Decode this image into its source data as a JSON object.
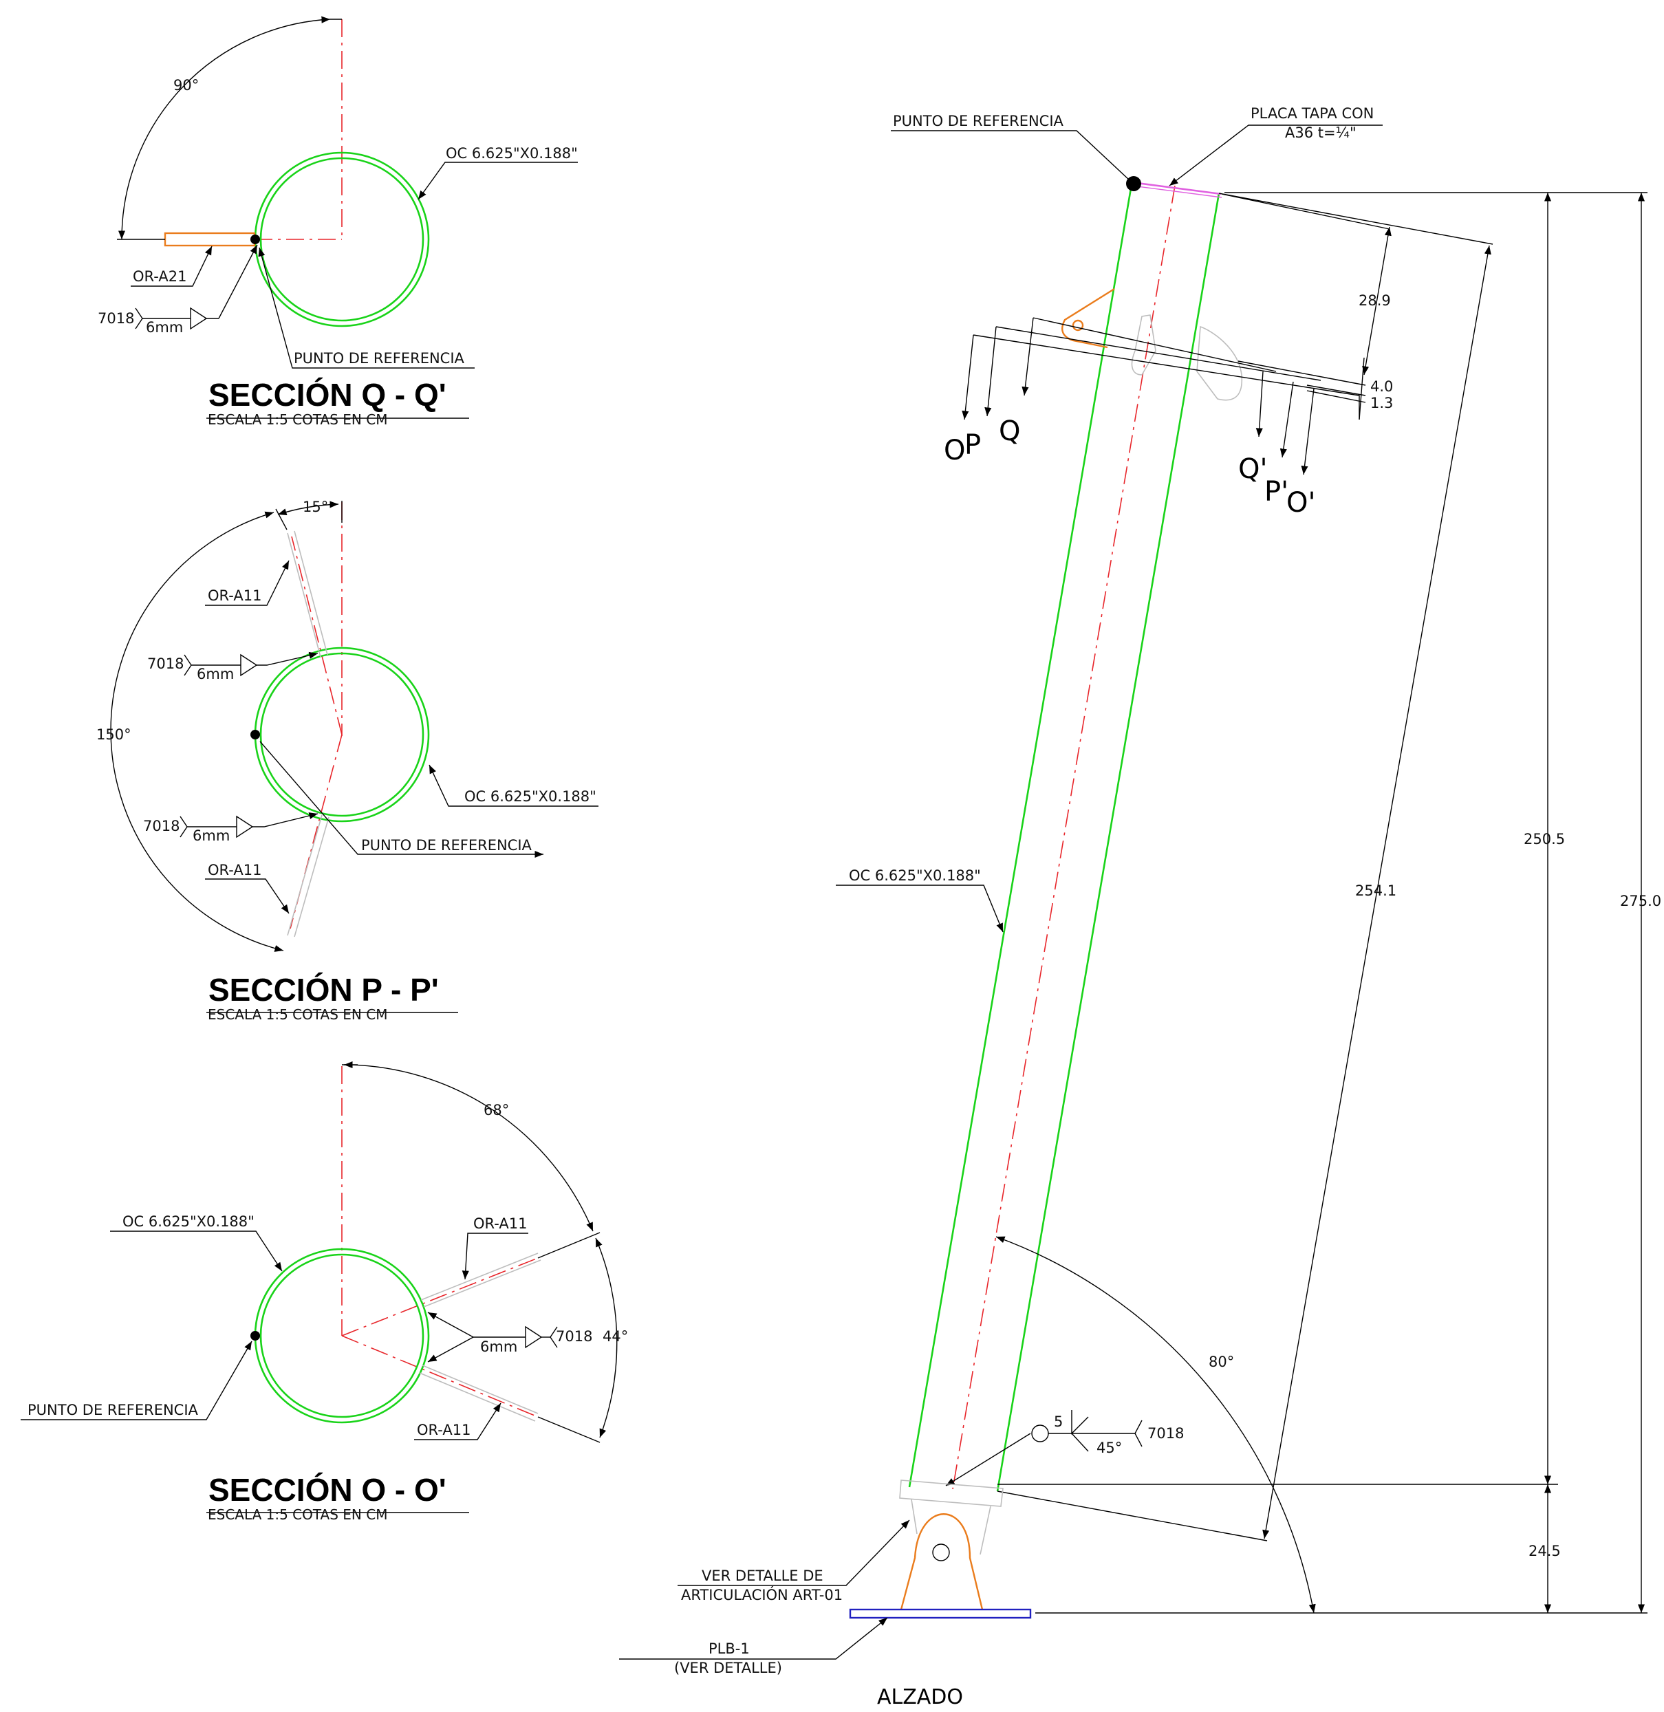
{
  "sections": [
    {
      "id": "q",
      "title": "SECCIÓN      Q - Q'",
      "scale_note": "ESCALA  1:5    COTAS EN CM",
      "angle": "90°",
      "pipe": "OC 6.625\"X0.188\"",
      "ref": "PUNTO DE REFERENCIA",
      "plate": "OR-A21",
      "weld_code": "7018",
      "weld_size": "6mm"
    },
    {
      "id": "p",
      "title": "SECCIÓN      P - P'",
      "scale_note": "ESCALA  1:5    COTAS EN CM",
      "angle_top": "15°",
      "angle_total": "150°",
      "pipe": "OC 6.625\"X0.188\"",
      "ref": "PUNTO DE REFERENCIA",
      "plate_top": "OR-A11",
      "plate_bottom": "OR-A11",
      "weld_code": "7018",
      "weld_size": "6mm"
    },
    {
      "id": "o",
      "title": "SECCIÓN      O - O'",
      "scale_note": "ESCALA  1:5    COTAS EN CM",
      "angle_top": "68°",
      "angle_mid": "44°",
      "pipe": "OC 6.625\"X0.188\"",
      "ref": "PUNTO DE REFERENCIA",
      "plate_top": "OR-A11",
      "plate_bottom": "OR-A11",
      "weld_code": "7018",
      "weld_size": "6mm"
    }
  ],
  "elevation": {
    "view_title": "ALZADO",
    "ref_point": "PUNTO DE REFERENCIA",
    "cap_plate_line1": "PLACA TAPA CON",
    "cap_plate_line2": "A36 t=¼\"",
    "pipe": "OC 6.625\"X0.188\"",
    "cut_labels": [
      "O",
      "P",
      "Q",
      "Q'",
      "P'",
      "O'"
    ],
    "dimensions": {
      "d1": "28.9",
      "d2": "4.0",
      "d3": "1.3",
      "length_inclined": "254.1",
      "height_pipe": "250.5",
      "height_total": "275.0",
      "height_base": "24.5",
      "angle": "80°"
    },
    "weld": {
      "size": "5",
      "angle": "45°",
      "code": "7018"
    },
    "detail_line1": "VER DETALLE DE",
    "detail_line2": "ARTICULACIÓN ART-01",
    "base_plate_line1": "PLB-1",
    "base_plate_line2": "(VER DETALLE)"
  },
  "colors": {
    "pipe": "#19d319",
    "axis": "#e8262b",
    "plate_orange": "#ea7c1c",
    "cap_plate": "#e060e0",
    "base_plate": "#2020c0",
    "hidden": "#bdbdbd"
  }
}
